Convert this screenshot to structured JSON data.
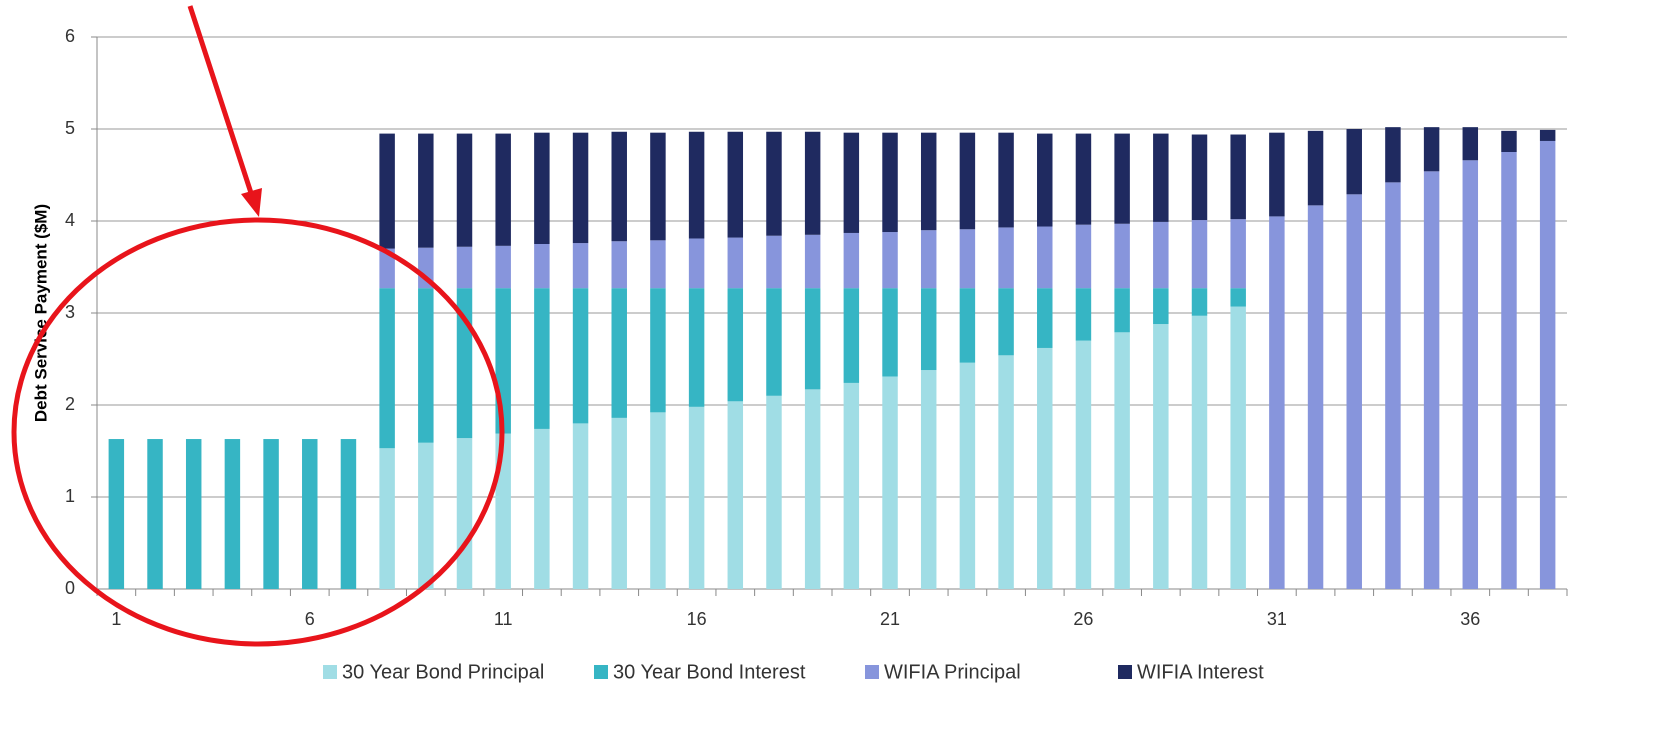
{
  "chart_data": {
    "type": "stacked_bar",
    "y_label": "Debt Service Payment ($M)",
    "categories": [
      1,
      null,
      null,
      null,
      null,
      6,
      null,
      null,
      null,
      null,
      11,
      null,
      null,
      null,
      null,
      16,
      null,
      null,
      null,
      null,
      21,
      null,
      null,
      null,
      null,
      26,
      null,
      null,
      null,
      null,
      31,
      null,
      null,
      null,
      null,
      36,
      null,
      null
    ],
    "series": [
      {
        "name": "30 Year Bond Principal",
        "color": "#a0dde5",
        "values": [
          0,
          0,
          0,
          0,
          0,
          0,
          0,
          1.53,
          1.59,
          1.64,
          1.69,
          1.74,
          1.8,
          1.86,
          1.92,
          1.98,
          2.04,
          2.1,
          2.17,
          2.24,
          2.31,
          2.38,
          2.46,
          2.54,
          2.62,
          2.7,
          2.79,
          2.88,
          2.97,
          3.07,
          0,
          0,
          0,
          0,
          0,
          0,
          0,
          0
        ]
      },
      {
        "name": "30 Year Bond Interest",
        "color": "#36b5c4",
        "values": [
          1.63,
          1.63,
          1.63,
          1.63,
          1.63,
          1.63,
          1.63,
          1.74,
          1.68,
          1.63,
          1.58,
          1.53,
          1.47,
          1.41,
          1.35,
          1.29,
          1.23,
          1.17,
          1.1,
          1.03,
          0.96,
          0.89,
          0.81,
          0.73,
          0.65,
          0.57,
          0.48,
          0.39,
          0.3,
          0.2,
          0,
          0,
          0,
          0,
          0,
          0,
          0,
          0
        ]
      },
      {
        "name": "WIFIA Principal",
        "color": "#8795dc",
        "values": [
          0,
          0,
          0,
          0,
          0,
          0,
          0,
          0.43,
          0.44,
          0.45,
          0.46,
          0.48,
          0.49,
          0.51,
          0.52,
          0.54,
          0.55,
          0.57,
          0.58,
          0.6,
          0.61,
          0.63,
          0.64,
          0.66,
          0.67,
          0.69,
          0.7,
          0.72,
          0.74,
          0.75,
          4.05,
          4.17,
          4.29,
          4.42,
          4.54,
          4.66,
          4.75,
          4.87
        ]
      },
      {
        "name": "WIFIA Interest",
        "color": "#1f2a60",
        "values": [
          0,
          0,
          0,
          0,
          0,
          0,
          0,
          1.25,
          1.24,
          1.23,
          1.22,
          1.21,
          1.2,
          1.19,
          1.17,
          1.16,
          1.15,
          1.13,
          1.12,
          1.09,
          1.08,
          1.06,
          1.05,
          1.03,
          1.01,
          0.99,
          0.98,
          0.96,
          0.93,
          0.92,
          0.91,
          0.81,
          0.71,
          0.6,
          0.48,
          0.36,
          0.23,
          0.12
        ]
      }
    ],
    "ylim": [
      0,
      6
    ],
    "yticks": [
      0,
      1,
      2,
      3,
      4,
      5,
      6
    ],
    "grid": true,
    "legend": "bottom"
  }
}
